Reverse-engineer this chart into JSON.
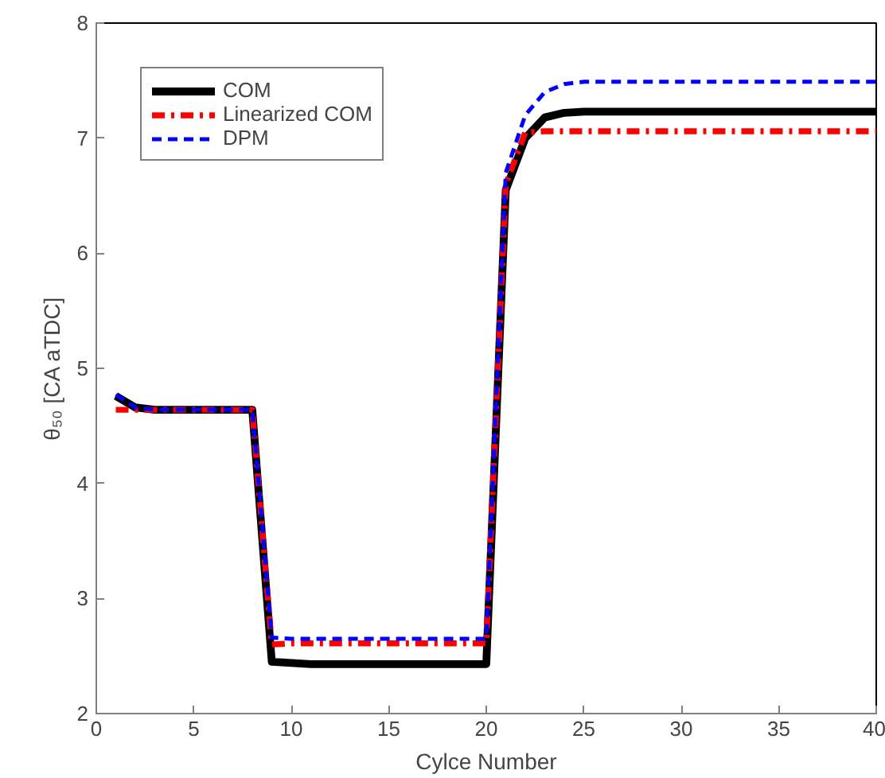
{
  "chart_data": {
    "type": "line",
    "xlabel": "Cylce Number",
    "ylabel": "θ₅₀ [CA aTDC]",
    "x": [
      1,
      2,
      3,
      4,
      5,
      6,
      7,
      8,
      9,
      10,
      11,
      12,
      13,
      14,
      15,
      16,
      17,
      18,
      19,
      20,
      21,
      22,
      23,
      24,
      25,
      26,
      27,
      28,
      29,
      30,
      31,
      32,
      33,
      34,
      35,
      36,
      37,
      38,
      39,
      40
    ],
    "xlim": [
      0,
      40
    ],
    "xticks": [
      0,
      5,
      10,
      15,
      20,
      25,
      30,
      35,
      40
    ],
    "ylim": [
      2,
      8
    ],
    "yticks": [
      2,
      3,
      4,
      5,
      6,
      7,
      8
    ],
    "grid": false,
    "legend": "top left",
    "marker": "none",
    "series": [
      {
        "name": "COM",
        "color": "#000000",
        "line_style": "solid",
        "values": [
          4.76,
          4.66,
          4.64,
          4.64,
          4.64,
          4.64,
          4.64,
          4.64,
          2.45,
          2.44,
          2.43,
          2.43,
          2.43,
          2.43,
          2.43,
          2.43,
          2.43,
          2.43,
          2.43,
          2.43,
          6.55,
          7.0,
          7.18,
          7.22,
          7.23,
          7.23,
          7.23,
          7.23,
          7.23,
          7.23,
          7.23,
          7.23,
          7.23,
          7.23,
          7.23,
          7.23,
          7.23,
          7.23,
          7.23,
          7.23
        ]
      },
      {
        "name": "Linearized COM",
        "color": "#ff0000",
        "line_style": "dashdot",
        "values": [
          4.64,
          4.64,
          4.64,
          4.64,
          4.64,
          4.64,
          4.64,
          4.64,
          2.6,
          2.61,
          2.61,
          2.61,
          2.61,
          2.61,
          2.61,
          2.61,
          2.61,
          2.61,
          2.61,
          2.61,
          6.6,
          7.05,
          7.06,
          7.06,
          7.06,
          7.06,
          7.06,
          7.06,
          7.06,
          7.06,
          7.06,
          7.06,
          7.06,
          7.06,
          7.06,
          7.06,
          7.06,
          7.06,
          7.06,
          7.06
        ]
      },
      {
        "name": "DPM",
        "color": "#0000ff",
        "line_style": "dashed",
        "values": [
          4.77,
          4.66,
          4.64,
          4.64,
          4.64,
          4.64,
          4.64,
          4.64,
          2.66,
          2.65,
          2.65,
          2.65,
          2.65,
          2.65,
          2.65,
          2.65,
          2.65,
          2.65,
          2.65,
          2.65,
          6.7,
          7.2,
          7.4,
          7.47,
          7.49,
          7.49,
          7.49,
          7.49,
          7.49,
          7.49,
          7.49,
          7.49,
          7.49,
          7.49,
          7.49,
          7.49,
          7.49,
          7.49,
          7.49,
          7.49
        ]
      }
    ]
  }
}
